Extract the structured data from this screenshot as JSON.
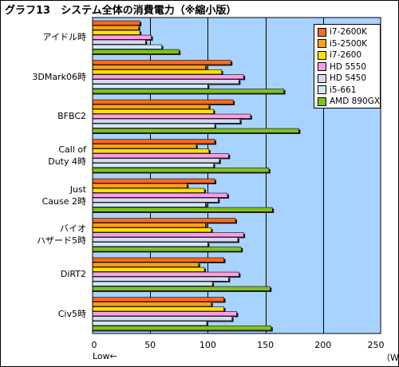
{
  "title": "グラフ13　システム全体の消費電力（※縮小版）",
  "chart_data": {
    "type": "bar",
    "orientation": "horizontal",
    "title": "グラフ13　システム全体の消費電力（※縮小版）",
    "x_axis": {
      "min": 0,
      "max": 250,
      "ticks": [
        0,
        50,
        100,
        150,
        200,
        250
      ],
      "low_label": "Low←",
      "unit": "（W）"
    },
    "grid": true,
    "legend_position": "top-right",
    "categories": [
      "アイドル時",
      "3DMark06時",
      "BFBC2",
      "Call of\nDuty 4時",
      "Just\nCause 2時",
      "バイオ\nハザード5時",
      "DiRT2",
      "Civ5時"
    ],
    "series": [
      {
        "name": "i7-2600K",
        "color": "#ff6a1a",
        "values": [
          41,
          120,
          122,
          106,
          106,
          124,
          114,
          114
        ]
      },
      {
        "name": "i5-2500K",
        "color": "#ffa018",
        "values": [
          40,
          98,
          101,
          90,
          82,
          98,
          92,
          103
        ]
      },
      {
        "name": "i7-2600",
        "color": "#ffe000",
        "values": [
          41,
          112,
          105,
          101,
          97,
          103,
          97,
          114
        ]
      },
      {
        "name": "HD 5550",
        "color": "#ff9ee6",
        "values": [
          51,
          131,
          137,
          118,
          117,
          131,
          127,
          125
        ]
      },
      {
        "name": "HD 5450",
        "color": "#d8d8f0",
        "values": [
          46,
          127,
          128,
          110,
          109,
          126,
          118,
          121
        ]
      },
      {
        "name": "i5-661",
        "color": "#cfe8ff",
        "values": [
          60,
          100,
          106,
          105,
          98,
          100,
          104,
          99
        ]
      },
      {
        "name": "AMD 890GX",
        "color": "#80c020",
        "values": [
          75,
          166,
          179,
          153,
          156,
          129,
          154,
          155
        ]
      }
    ]
  }
}
